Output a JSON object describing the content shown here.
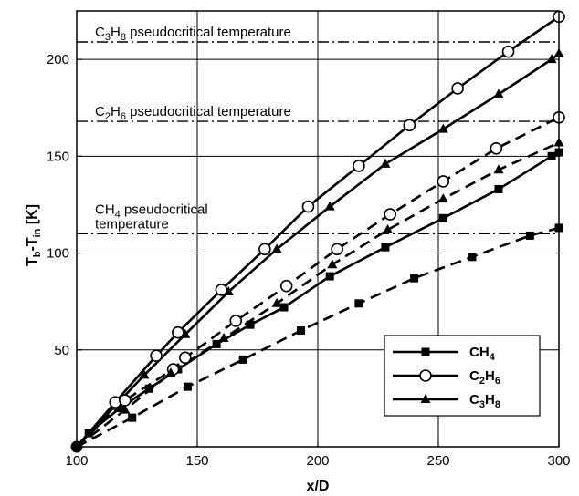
{
  "chart_data": {
    "type": "line",
    "title": "",
    "xlabel": "x/D",
    "ylabel": {
      "main": "T",
      "sub1": "b",
      "mid": "-T",
      "sub2": "in",
      "unit": " [K]"
    },
    "xlim": [
      100,
      300
    ],
    "ylim": [
      0,
      225
    ],
    "xticks": [
      100,
      150,
      200,
      250,
      300
    ],
    "yticks": [
      50,
      100,
      150,
      200
    ],
    "grid": true,
    "legend_position": "bottom-right",
    "series": [
      {
        "name": "CH4",
        "label_main": "CH",
        "label_sub": "4",
        "marker": "square",
        "solid": {
          "x": [
            100,
            105,
            118,
            130,
            142,
            158,
            172,
            186,
            205,
            228,
            252,
            275,
            297,
            300
          ],
          "y": [
            0,
            7,
            20,
            30,
            40,
            53,
            63,
            72,
            88,
            103,
            118,
            133,
            150,
            152
          ]
        },
        "dashed": {
          "x": [
            100,
            123,
            146,
            169,
            193,
            217,
            240,
            264,
            288,
            300
          ],
          "y": [
            0,
            15,
            31,
            45,
            60,
            74,
            87,
            98,
            109,
            113
          ]
        }
      },
      {
        "name": "C2H6",
        "label_main": "C",
        "label_sub1": "2",
        "label_mid": "H",
        "label_sub2": "6",
        "marker": "circle",
        "solid": {
          "x": [
            100,
            116,
            133,
            142,
            160,
            178,
            196,
            217,
            238,
            258,
            279,
            300
          ],
          "y": [
            0,
            23,
            47,
            59,
            81,
            102,
            124,
            145,
            166,
            185,
            204,
            222
          ]
        },
        "dashed": {
          "x": [
            100,
            120,
            140,
            145,
            166,
            187,
            208,
            230,
            252,
            274,
            300
          ],
          "y": [
            0,
            24,
            40,
            46,
            65,
            83,
            102,
            120,
            137,
            154,
            170
          ]
        }
      },
      {
        "name": "C3H8",
        "label_main": "C",
        "label_sub1": "3",
        "label_mid": "H",
        "label_sub2": "8",
        "marker": "triangle",
        "solid": {
          "x": [
            100,
            128,
            145,
            163,
            183,
            205,
            228,
            252,
            275,
            297,
            300
          ],
          "y": [
            0,
            37,
            58,
            80,
            102,
            124,
            146,
            164,
            182,
            200,
            203
          ]
        },
        "dashed": {
          "x": [
            100,
            120,
            139,
            161,
            183,
            206,
            229,
            252,
            275,
            300
          ],
          "y": [
            0,
            19,
            38,
            56,
            74,
            94,
            112,
            128,
            143,
            157
          ]
        }
      }
    ],
    "reference_lines": [
      {
        "y": 209,
        "label_main": "C",
        "label_sub1": "3",
        "label_mid": "H",
        "label_sub2": "8",
        "label_rest": " pseudocritical temperature",
        "label_rest2": ""
      },
      {
        "y": 168,
        "label_main": "C",
        "label_sub1": "2",
        "label_mid": "H",
        "label_sub2": "6",
        "label_rest": " pseudocritical temperature",
        "label_rest2": ""
      },
      {
        "y": 110,
        "label_main": "CH",
        "label_sub1": "4",
        "label_mid": "",
        "label_sub2": "",
        "label_rest": " pseudocritical",
        "label_rest2": "temperature"
      }
    ],
    "origin_point": {
      "x": 100,
      "y": 0
    }
  }
}
